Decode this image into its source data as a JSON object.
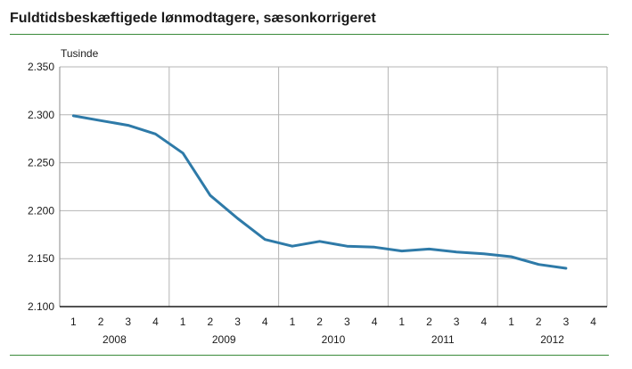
{
  "chart_data": {
    "type": "line",
    "title": "Fuldtidsbeskæftigede lønmodtagere, sæsonkorrigeret",
    "ylabel": "Tusinde",
    "xlabel": "",
    "ylim": [
      2100,
      2350
    ],
    "yticks": [
      2100,
      2150,
      2200,
      2250,
      2300,
      2350
    ],
    "ytick_labels": [
      "2.100",
      "2.150",
      "2.200",
      "2.250",
      "2.300",
      "2.350"
    ],
    "grid": true,
    "line_color": "#2e7aa8",
    "years": [
      "2008",
      "2009",
      "2010",
      "2011",
      "2012"
    ],
    "quarter_labels": [
      "1",
      "2",
      "3",
      "4",
      "1",
      "2",
      "3",
      "4",
      "1",
      "2",
      "3",
      "4",
      "1",
      "2",
      "3",
      "4",
      "1",
      "2",
      "3",
      "4"
    ],
    "series": [
      {
        "values": [
          2299,
          2294,
          2289,
          2280,
          2260,
          2216,
          2192,
          2170,
          2163,
          2168,
          2163,
          2162,
          2158,
          2160,
          2157,
          2155,
          2152,
          2144,
          2140
        ]
      }
    ]
  }
}
